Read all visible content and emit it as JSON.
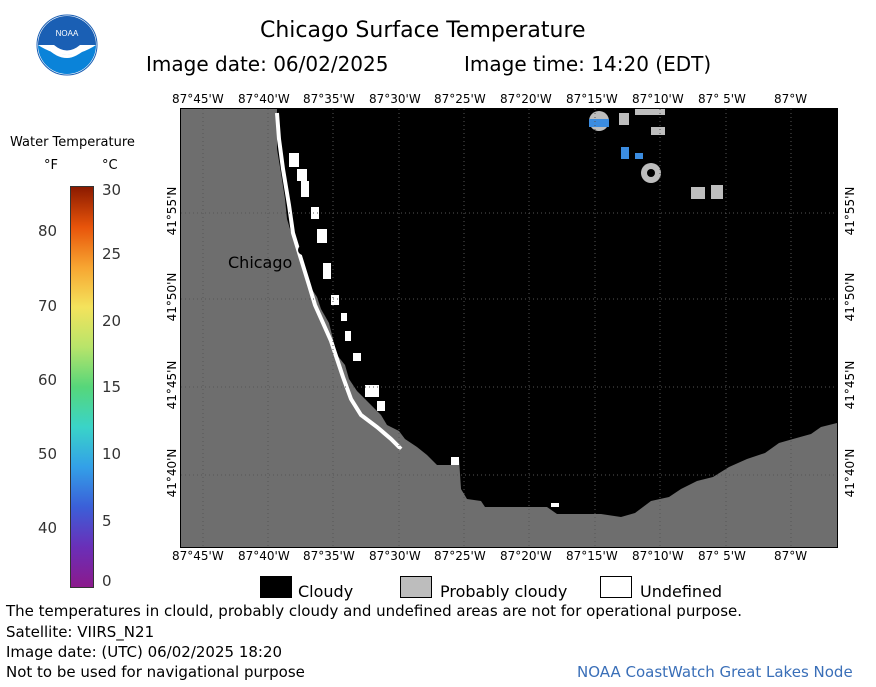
{
  "header": {
    "title": "Chicago Surface Temperature",
    "image_date": "Image date: 06/02/2025",
    "image_time": "Image time: 14:20 (EDT)"
  },
  "logo": {
    "text": "NOAA",
    "colors": {
      "top": "#1a5fb4",
      "bottom": "#0a83d9",
      "bird": "#ffffff"
    }
  },
  "map": {
    "top_lon_labels": [
      "87°45'W",
      "87°40'W",
      "87°35'W",
      "87°30'W",
      "87°25'W",
      "87°20'W",
      "87°15'W",
      "87°10'W",
      "87° 5'W",
      "87°W"
    ],
    "bottom_lon_labels": [
      "87°45'W",
      "87°40'W",
      "87°35'W",
      "87°30'W",
      "87°25'W",
      "87°20'W",
      "87°15'W",
      "87°10'W",
      "87° 5'W",
      "87°W"
    ],
    "lat_labels": [
      "41°55'N",
      "41°50'N",
      "41°45'N",
      "41°40'N"
    ],
    "city_label": "Chicago",
    "colors": {
      "land": "#6e6e6e",
      "cloud": "#000000",
      "probably_cloudy": "#bdbdbd",
      "undefined": "#ffffff",
      "grid": "#444444"
    }
  },
  "colorbar": {
    "title": "Water Temperature",
    "unit_f": "°F",
    "unit_c": "°C",
    "f_ticks": [
      "80",
      "70",
      "60",
      "50",
      "40"
    ],
    "c_ticks": [
      "30",
      "25",
      "20",
      "15",
      "10",
      "5",
      "0"
    ],
    "gradient": [
      "#8b1a00",
      "#e8540a",
      "#f7a531",
      "#f4e35c",
      "#b8e46a",
      "#56d67a",
      "#3ad4c8",
      "#33a0e8",
      "#3b5fd8",
      "#6a2fb8",
      "#8b1a8c"
    ]
  },
  "legend": {
    "cloudy": "Cloudy",
    "probably_cloudy": "Probably cloudy",
    "undefined": "Undefined"
  },
  "footer": {
    "disclaimer": "The temperatures in clould, probably cloudy and undefined areas are not for operational purpose.",
    "satellite": "Satellite: VIIRS_N21",
    "utc_date": "Image date: (UTC) 06/02/2025  18:20",
    "nav_note": "Not to be used for navigational purpose",
    "credit": "NOAA CoastWatch Great Lakes Node",
    "credit_color": "#3a6fb8"
  }
}
